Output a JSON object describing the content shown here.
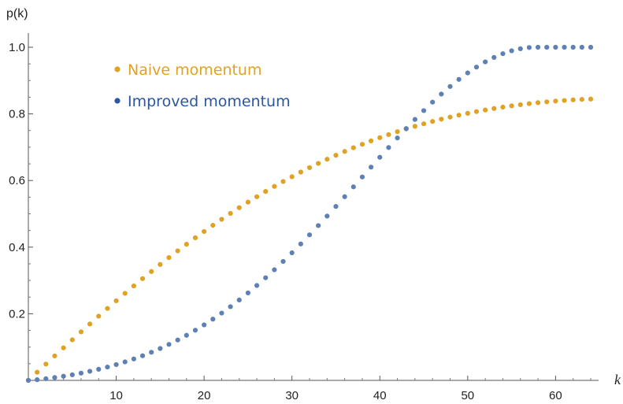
{
  "chart_data": {
    "type": "scatter",
    "xlabel": "k",
    "ylabel": "p(k)",
    "xlim": [
      0,
      64
    ],
    "ylim": [
      0,
      1.0
    ],
    "x_ticks": [
      10,
      20,
      30,
      40,
      50,
      60
    ],
    "x_tick_labels": [
      "10",
      "20",
      "30",
      "40",
      "50",
      "60"
    ],
    "y_ticks": [
      0.2,
      0.4,
      0.6,
      0.8,
      1.0
    ],
    "y_tick_labels": [
      "0.2",
      "0.4",
      "0.6",
      "0.8",
      "1.0"
    ],
    "grid": false,
    "legend_position": "top-left",
    "x": [
      0,
      1,
      2,
      3,
      4,
      5,
      6,
      7,
      8,
      9,
      10,
      11,
      12,
      13,
      14,
      15,
      16,
      17,
      18,
      19,
      20,
      21,
      22,
      23,
      24,
      25,
      26,
      27,
      28,
      29,
      30,
      31,
      32,
      33,
      34,
      35,
      36,
      37,
      38,
      39,
      40,
      41,
      42,
      43,
      44,
      45,
      46,
      47,
      48,
      49,
      50,
      51,
      52,
      53,
      54,
      55,
      56,
      57,
      58,
      59,
      60,
      61,
      62,
      63,
      64
    ],
    "series": [
      {
        "name": "Naive momentum",
        "color": "#e0a224",
        "values": [
          0.0,
          0.0245,
          0.0489,
          0.0733,
          0.0976,
          0.1217,
          0.1456,
          0.1693,
          0.1927,
          0.2159,
          0.2388,
          0.2613,
          0.2835,
          0.3053,
          0.3268,
          0.3479,
          0.3686,
          0.3888,
          0.4086,
          0.4281,
          0.447,
          0.4656,
          0.4836,
          0.5012,
          0.5184,
          0.5351,
          0.5513,
          0.5671,
          0.5823,
          0.5971,
          0.6114,
          0.6253,
          0.6386,
          0.6515,
          0.6639,
          0.6758,
          0.6873,
          0.6983,
          0.7088,
          0.7189,
          0.7285,
          0.7377,
          0.7465,
          0.7548,
          0.7627,
          0.7702,
          0.7773,
          0.784,
          0.7903,
          0.7962,
          0.8017,
          0.8069,
          0.8117,
          0.8162,
          0.8203,
          0.8241,
          0.8276,
          0.8307,
          0.8336,
          0.8361,
          0.8384,
          0.8403,
          0.842,
          0.8434,
          0.8445
        ]
      },
      {
        "name": "Improved momentum",
        "color": "#5e81b5",
        "values": [
          0.0,
          0.002,
          0.005,
          0.0085,
          0.0124,
          0.0168,
          0.0217,
          0.0272,
          0.0333,
          0.04,
          0.0474,
          0.0555,
          0.0643,
          0.0739,
          0.0844,
          0.0957,
          0.108,
          0.1212,
          0.1353,
          0.1505,
          0.1666,
          0.1838,
          0.202,
          0.2212,
          0.2414,
          0.2626,
          0.2848,
          0.308,
          0.3321,
          0.3571,
          0.3829,
          0.4095,
          0.4368,
          0.4647,
          0.4932,
          0.5221,
          0.5514,
          0.5809,
          0.6106,
          0.6402,
          0.6697,
          0.6989,
          0.7277,
          0.7559,
          0.7833,
          0.8098,
          0.8352,
          0.8594,
          0.8822,
          0.9034,
          0.9229,
          0.9405,
          0.9561,
          0.9695,
          0.9806,
          0.9893,
          0.9955,
          0.9992,
          1.0,
          1.0,
          1.0,
          1.0,
          1.0,
          1.0,
          1.0
        ]
      }
    ]
  }
}
